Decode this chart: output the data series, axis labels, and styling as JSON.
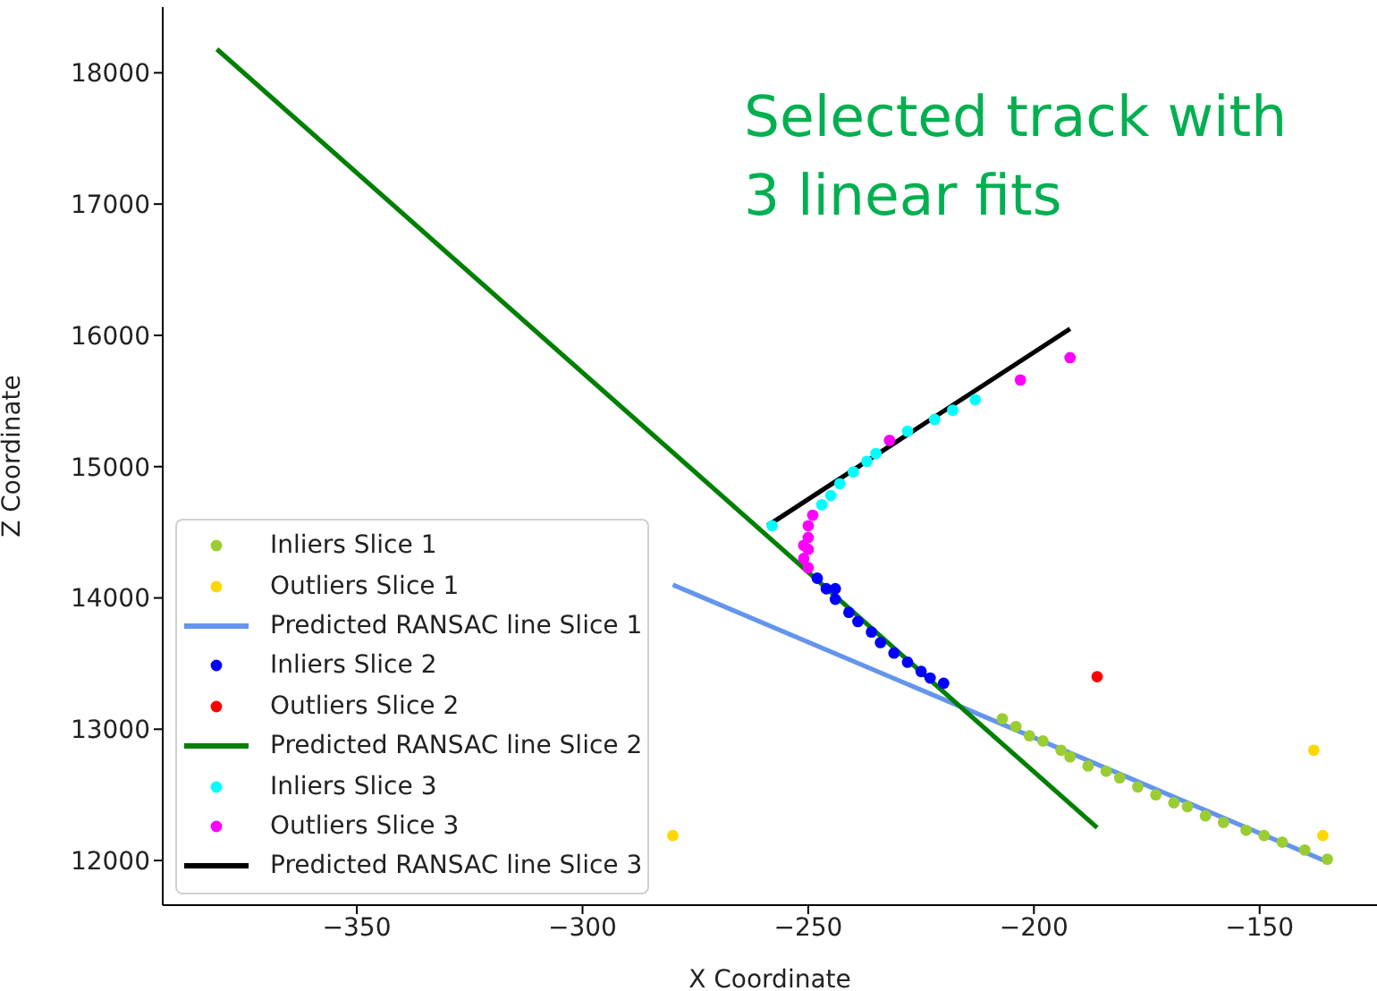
{
  "chart_data": {
    "type": "scatter",
    "xlabel": "X Coordinate",
    "ylabel": "Z Coordinate",
    "annotations": [
      "Selected track with\n3 linear fits"
    ],
    "xlim": [
      -393,
      -124
    ],
    "xticks": [
      -350,
      -300,
      -250,
      -200,
      -150
    ],
    "ylim": [
      11660,
      18500
    ],
    "yticks": [
      12000,
      13000,
      14000,
      15000,
      16000,
      17000,
      18000
    ],
    "grid": false,
    "legend": "bottom left",
    "series": [
      {
        "name": "Inliers Slice 1",
        "marker": "circle",
        "color": "#9acd32",
        "x": [
          -207,
          -204,
          -201,
          -198,
          -194,
          -192,
          -188,
          -184,
          -181,
          -177,
          -173,
          -169,
          -166,
          -162,
          -158,
          -153,
          -149,
          -145,
          -140,
          -135
        ],
        "values": [
          13080,
          13020,
          12950,
          12910,
          12840,
          12790,
          12720,
          12680,
          12630,
          12560,
          12500,
          12440,
          12410,
          12340,
          12290,
          12230,
          12190,
          12140,
          12080,
          12010
        ]
      },
      {
        "name": "Outliers Slice 1",
        "marker": "circle",
        "color": "#ffd700",
        "x": [
          -138,
          -136,
          -280
        ],
        "values": [
          12840,
          12190,
          12190
        ]
      },
      {
        "name": "Predicted RANSAC line Slice 1",
        "type": "line",
        "marker": "none",
        "color": "#6495ed",
        "x": [
          -280,
          -135
        ],
        "values": [
          14100,
          11990
        ]
      },
      {
        "name": "Inliers Slice 2",
        "marker": "circle",
        "color": "#0000ff",
        "x": [
          -248,
          -246,
          -244,
          -244,
          -241,
          -239,
          -236,
          -234,
          -231,
          -228,
          -225,
          -223,
          -220
        ],
        "values": [
          14150,
          14070,
          14070,
          13990,
          13890,
          13820,
          13740,
          13660,
          13580,
          13510,
          13440,
          13390,
          13350
        ]
      },
      {
        "name": "Outliers Slice 2",
        "marker": "circle",
        "color": "#ff0000",
        "x": [
          -186
        ],
        "values": [
          13400
        ]
      },
      {
        "name": "Predicted RANSAC line Slice 2",
        "type": "line",
        "marker": "none",
        "color": "#008000",
        "x": [
          -381,
          -186
        ],
        "values": [
          18180,
          12250
        ]
      },
      {
        "name": "Inliers Slice 3",
        "marker": "circle",
        "color": "#00ffff",
        "x": [
          -258,
          -247,
          -245,
          -243,
          -240,
          -237,
          -235,
          -228,
          -222,
          -218,
          -213
        ],
        "values": [
          14550,
          14710,
          14780,
          14870,
          14960,
          15040,
          15100,
          15270,
          15360,
          15430,
          15510
        ]
      },
      {
        "name": "Outliers Slice 3",
        "marker": "circle",
        "color": "#ff00ff",
        "x": [
          -192,
          -203,
          -232,
          -249,
          -250,
          -250,
          -251,
          -250,
          -251,
          -250
        ],
        "values": [
          15830,
          15660,
          15200,
          14630,
          14550,
          14460,
          14400,
          14370,
          14300,
          14230
        ]
      },
      {
        "name": "Predicted RANSAC line Slice 3",
        "type": "line",
        "marker": "none",
        "color": "#000000",
        "x": [
          -259,
          -192
        ],
        "values": [
          14550,
          16050
        ]
      }
    ]
  }
}
